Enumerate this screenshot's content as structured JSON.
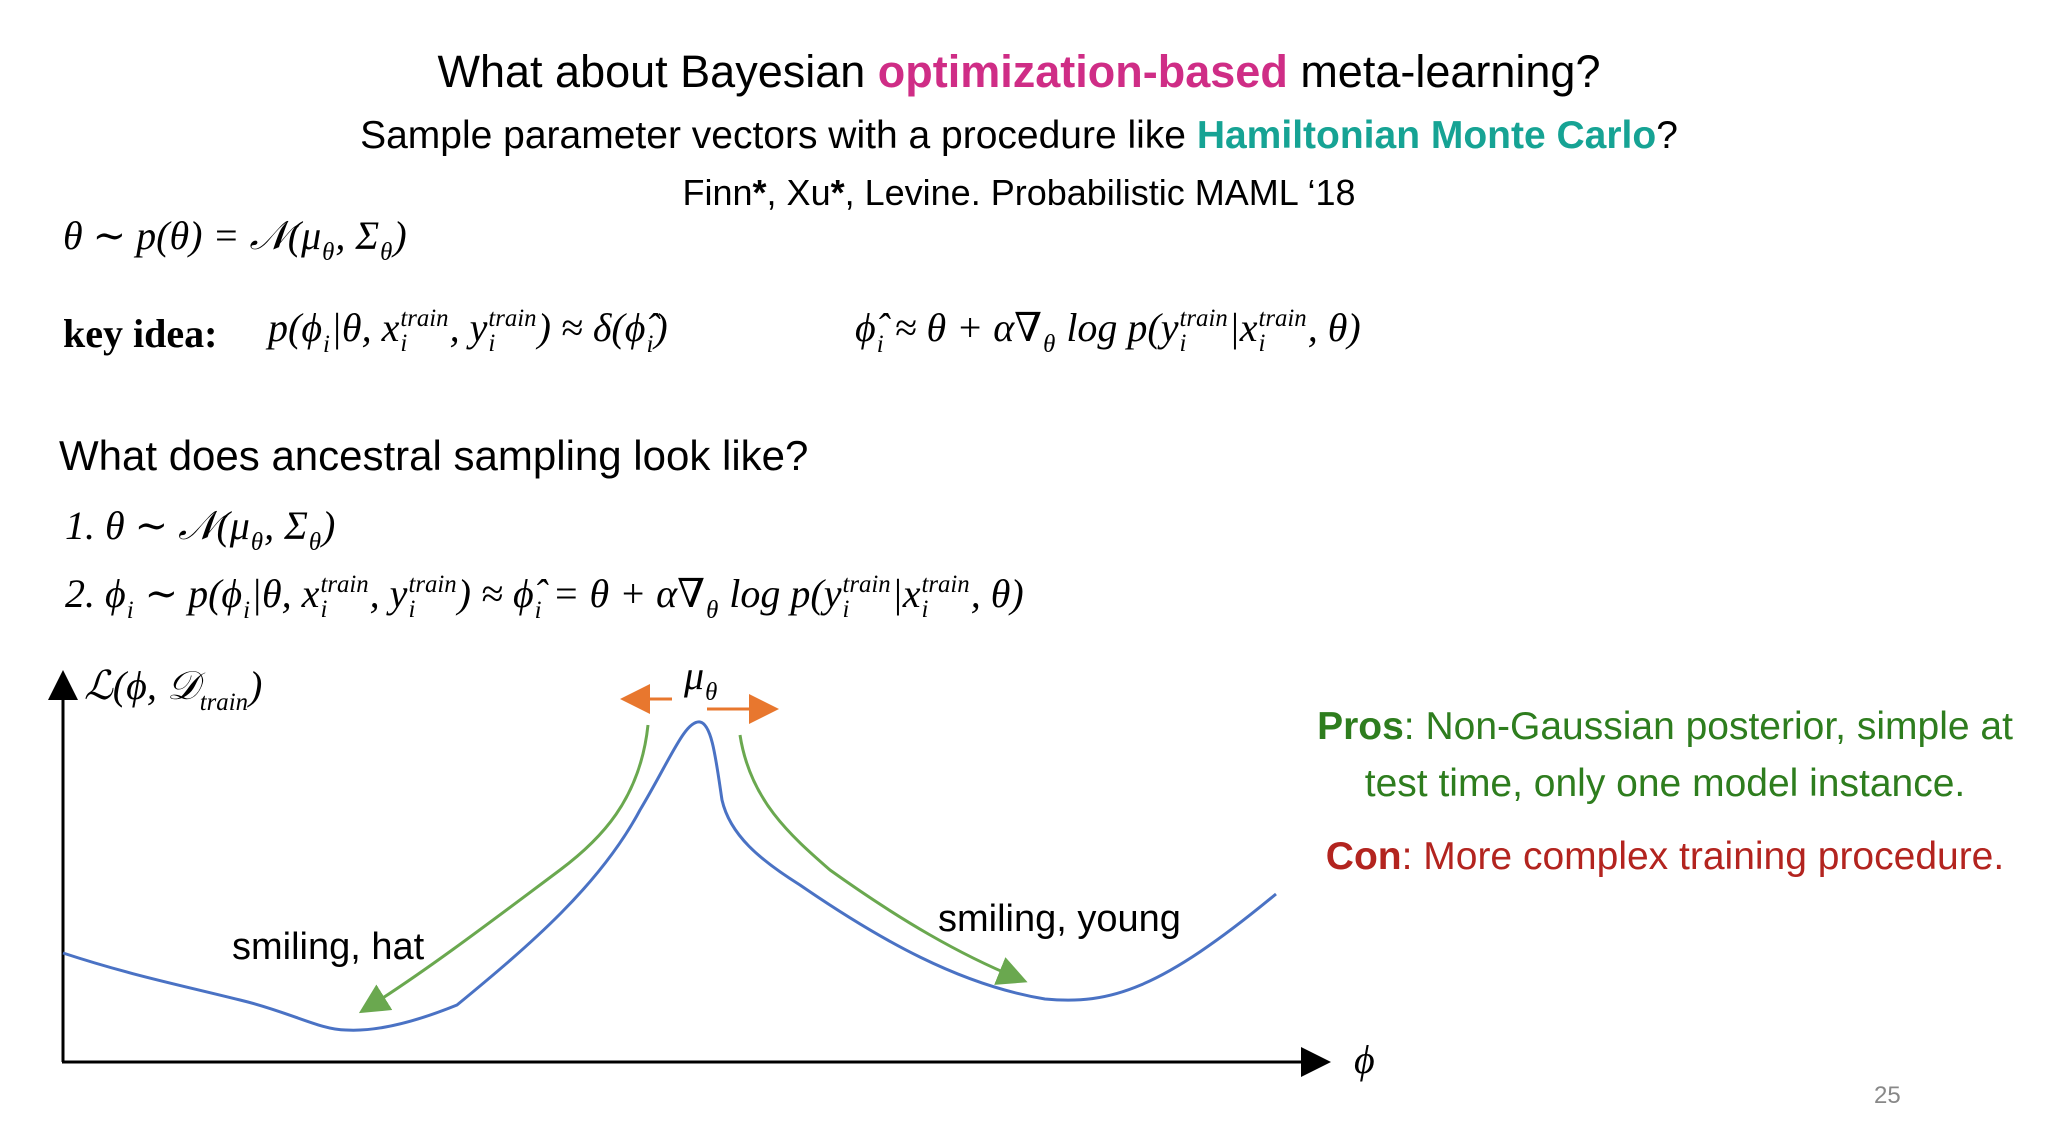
{
  "title": {
    "before": "What about Bayesian ",
    "highlight": "optimization-based",
    "after": " meta-learning?"
  },
  "subtitle": {
    "before": "Sample parameter vectors with a procedure like ",
    "highlight": "Hamiltonian Monte Carlo",
    "after": "?"
  },
  "citation": [
    "Finn",
    "*",
    ", Xu",
    "*",
    ", Levine. Probabilistic MAML ‘18"
  ],
  "prior": [
    "θ ∼ p(θ) = 𝒩(μ",
    {
      "sub": "θ"
    },
    ", Σ",
    {
      "sub": "θ"
    },
    ")"
  ],
  "key_idea": {
    "label": "key idea:",
    "left": [
      "p(ϕ",
      {
        "sub": "i"
      },
      "|θ, x",
      {
        "sub": "i",
        "sup": "train"
      },
      ", y",
      {
        "sub": "i",
        "sup": "train"
      },
      ") ≈ δ(ϕ̂",
      {
        "sub": "i"
      },
      ")"
    ],
    "right": [
      "ϕ̂",
      {
        "sub": "i"
      },
      " ≈ θ + α∇",
      {
        "sub": "θ"
      },
      " log p(y",
      {
        "sub": "i",
        "sup": "train"
      },
      "|x",
      {
        "sub": "i",
        "sup": "train"
      },
      ", θ)"
    ]
  },
  "question": "What does ancestral sampling look like?",
  "steps": [
    [
      "1.  θ ∼ 𝒩(μ",
      {
        "sub": "θ"
      },
      ", Σ",
      {
        "sub": "θ"
      },
      ")"
    ],
    [
      "2.  ϕ",
      {
        "sub": "i"
      },
      " ∼ p(ϕ",
      {
        "sub": "i"
      },
      "|θ, x",
      {
        "sub": "i",
        "sup": "train"
      },
      ", y",
      {
        "sub": "i",
        "sup": "train"
      },
      ") ≈ ϕ̂",
      {
        "sub": "i"
      },
      " = θ + α∇",
      {
        "sub": "θ"
      },
      " log p(y",
      {
        "sub": "i",
        "sup": "train"
      },
      "|x",
      {
        "sub": "i",
        "sup": "train"
      },
      ", θ)"
    ]
  ],
  "diagram": {
    "y_label": [
      "ℒ(ϕ, 𝒟",
      {
        "sub": "train"
      },
      ")"
    ],
    "x_label": "ϕ",
    "peak_label": [
      "μ",
      {
        "sub": "θ"
      }
    ],
    "annotations": [
      "smiling, hat",
      "smiling, young"
    ]
  },
  "pros": {
    "label": "Pros",
    "text": ": Non-Gaussian posterior, simple at test time, only one model instance."
  },
  "con": {
    "label": "Con",
    "text": ": More complex training procedure."
  },
  "page_number": "25"
}
